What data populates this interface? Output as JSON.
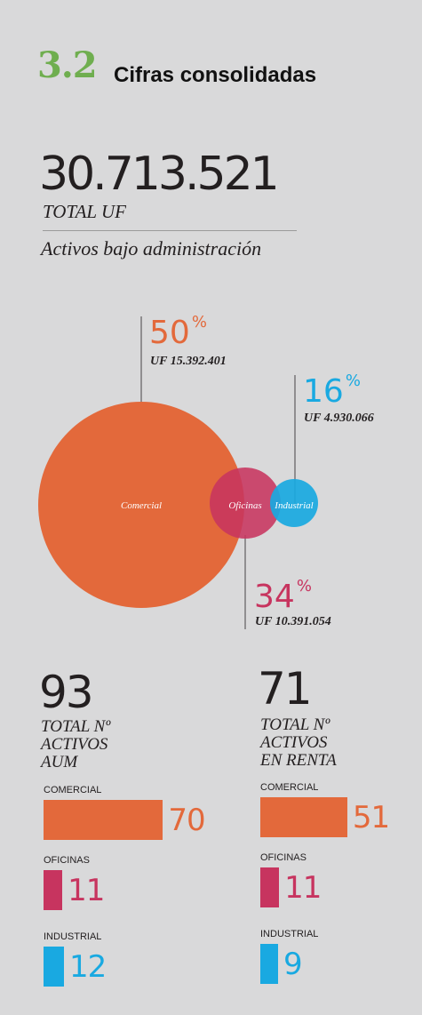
{
  "header": {
    "section_number": "3.2",
    "title": "Cifras consolidadas"
  },
  "total": {
    "value": "30.713.521",
    "label": "TOTAL UF",
    "subtitle": "Activos bajo administración"
  },
  "colors": {
    "comercial": "#e3693b",
    "oficinas": "#c7345f",
    "industrial": "#19a9e1",
    "accent": "#6fae4f"
  },
  "chart_data": [
    {
      "type": "bubble",
      "series": [
        {
          "name": "Comercial",
          "percent": 50,
          "percent_label": "50",
          "uf_label": "UF 15.392.401",
          "uf": 15392401,
          "color": "#e3693b"
        },
        {
          "name": "Oficinas",
          "percent": 34,
          "percent_label": "34",
          "uf_label": "UF 10.391.054",
          "uf": 10391054,
          "color": "#c7345f"
        },
        {
          "name": "Industrial",
          "percent": 16,
          "percent_label": "16",
          "uf_label": "UF 4.930.066",
          "uf": 4930066,
          "color": "#19a9e1"
        }
      ],
      "percent_symbol": "%"
    },
    {
      "type": "bar",
      "total": "93",
      "label": "TOTAL Nº\nACTIVOS\nAUM",
      "categories": [
        "COMERCIAL",
        "OFICINAS",
        "INDUSTRIAL"
      ],
      "values": [
        70,
        11,
        12
      ],
      "colors": [
        "#e3693b",
        "#c7345f",
        "#19a9e1"
      ]
    },
    {
      "type": "bar",
      "total": "71",
      "label": "TOTAL Nº\nACTIVOS\nEN RENTA",
      "categories": [
        "COMERCIAL",
        "OFICINAS",
        "INDUSTRIAL"
      ],
      "values": [
        51,
        11,
        9
      ],
      "colors": [
        "#e3693b",
        "#c7345f",
        "#19a9e1"
      ]
    }
  ]
}
